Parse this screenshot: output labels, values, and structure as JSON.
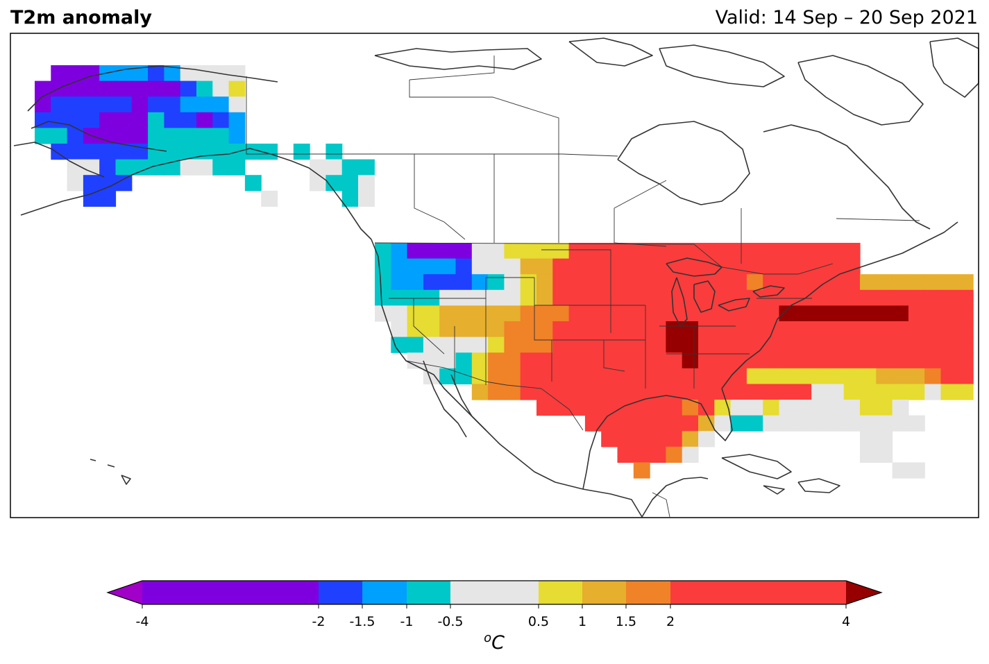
{
  "title": "T2m anomaly",
  "valid_label": "Valid: 14 Sep – 20 Sep 2021",
  "colorbar": {
    "unit_label": "oC",
    "unit_sup": "o",
    "unit_main": "C",
    "ticks": [
      {
        "v": -4,
        "label": "-4"
      },
      {
        "v": -2,
        "label": "-2"
      },
      {
        "v": -1.5,
        "label": "-1.5"
      },
      {
        "v": -1,
        "label": "-1"
      },
      {
        "v": -0.5,
        "label": "-0.5"
      },
      {
        "v": 0.5,
        "label": "0.5"
      },
      {
        "v": 1,
        "label": "1"
      },
      {
        "v": 1.5,
        "label": "1.5"
      },
      {
        "v": 2,
        "label": "2"
      },
      {
        "v": 4,
        "label": "4"
      }
    ],
    "bins": [
      {
        "from": -4,
        "to": -2,
        "color": "#7f00df"
      },
      {
        "from": -2,
        "to": -1.5,
        "color": "#2040ff"
      },
      {
        "from": -1.5,
        "to": -1,
        "color": "#00a0ff"
      },
      {
        "from": -1,
        "to": -0.5,
        "color": "#00c8c8"
      },
      {
        "from": -0.5,
        "to": 0.5,
        "color": "#e6e6e6"
      },
      {
        "from": 0.5,
        "to": 1,
        "color": "#e6dc32"
      },
      {
        "from": 1,
        "to": 1.5,
        "color": "#e6af2d"
      },
      {
        "from": 1.5,
        "to": 2,
        "color": "#f08228"
      },
      {
        "from": 2,
        "to": 4,
        "color": "#fa3c3c"
      }
    ],
    "under_color": "#a000c8",
    "over_color": "#960000"
  },
  "colors": {
    "coast": "#333333",
    "border": "#333333",
    "frame": "#000000"
  },
  "grid_codes": {
    "V": "#7f00df",
    "B": "#2040ff",
    "L": "#00a0ff",
    "T": "#00c8c8",
    "G": "#e6e6e6",
    "Y": "#e6dc32",
    "O": "#e6af2d",
    "N": "#f08228",
    "R": "#fa3c3c",
    "D": "#960000"
  }
}
